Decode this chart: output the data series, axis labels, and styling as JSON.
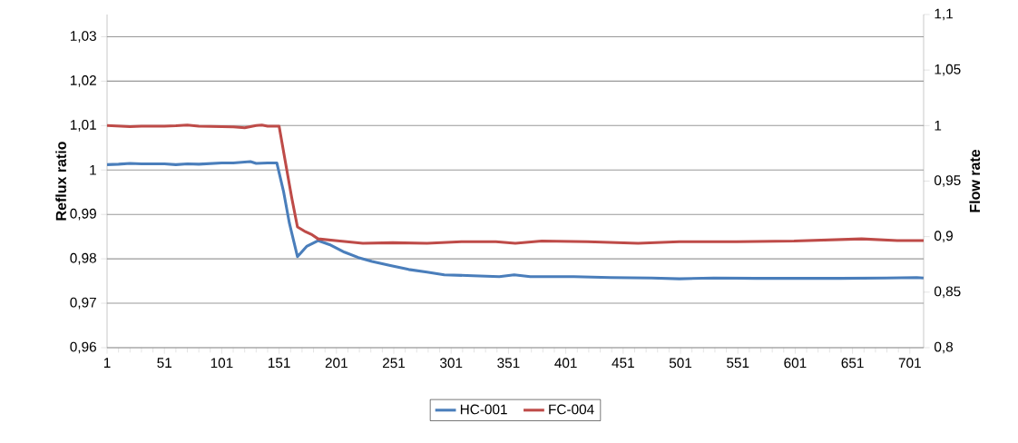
{
  "chart_data": {
    "type": "line",
    "ylabel": "Reflux ratio",
    "y2label": "Flow rate",
    "xlim": [
      1,
      713
    ],
    "xticks": [
      1,
      51,
      101,
      151,
      201,
      251,
      301,
      351,
      401,
      451,
      501,
      551,
      601,
      651,
      701
    ],
    "ylim": [
      0.96,
      1.035
    ],
    "yticks": [
      {
        "value": 0.96,
        "label": "0,96"
      },
      {
        "value": 0.97,
        "label": "0,97"
      },
      {
        "value": 0.98,
        "label": "0,98"
      },
      {
        "value": 0.99,
        "label": "0,99"
      },
      {
        "value": 1,
        "label": "1"
      },
      {
        "value": 1.01,
        "label": "1,01"
      },
      {
        "value": 1.02,
        "label": "1,02"
      },
      {
        "value": 1.03,
        "label": "1,03"
      }
    ],
    "y2lim": [
      0.8,
      1.1
    ],
    "y2ticks": [
      {
        "value": 0.8,
        "label": "0,8"
      },
      {
        "value": 0.85,
        "label": "0,85"
      },
      {
        "value": 0.9,
        "label": "0,9"
      },
      {
        "value": 0.95,
        "label": "0,95"
      },
      {
        "value": 1,
        "label": "1"
      },
      {
        "value": 1.05,
        "label": "1,05"
      },
      {
        "value": 1.1,
        "label": "1,1"
      }
    ],
    "grid": "y",
    "legend": "bottom",
    "series": [
      {
        "name": "HC-001",
        "color": "#4a7ebb",
        "x": [
          1,
          11,
          21,
          31,
          51,
          61,
          71,
          81,
          101,
          111,
          121,
          126,
          131,
          141,
          149,
          155,
          160,
          167,
          175,
          185,
          195,
          208,
          220,
          232,
          248,
          264,
          280,
          295,
          320,
          343,
          356,
          370,
          408,
          440,
          476,
          500,
          530,
          567,
          600,
          640,
          680,
          707,
          713
        ],
        "values": [
          1.0012,
          1.0013,
          1.0015,
          1.0014,
          1.0014,
          1.0012,
          1.0014,
          1.0013,
          1.0016,
          1.0016,
          1.0018,
          1.0019,
          1.0015,
          1.0016,
          1.0016,
          0.995,
          0.988,
          0.9805,
          0.9828,
          0.9841,
          0.9832,
          0.9815,
          0.9803,
          0.9794,
          0.9785,
          0.9776,
          0.977,
          0.9764,
          0.9762,
          0.976,
          0.9764,
          0.976,
          0.976,
          0.9758,
          0.9757,
          0.9755,
          0.9757,
          0.9756,
          0.9756,
          0.9756,
          0.9757,
          0.9758,
          0.9757
        ]
      },
      {
        "name": "FC-004",
        "color": "#be4b48",
        "axis": "y2",
        "x": [
          1,
          11,
          21,
          31,
          51,
          61,
          71,
          81,
          101,
          111,
          121,
          131,
          136,
          141,
          151,
          156,
          162,
          167,
          173,
          179,
          185,
          200,
          224,
          250,
          280,
          310,
          340,
          357,
          380,
          420,
          464,
          500,
          550,
          600,
          659,
          690,
          713
        ],
        "values": [
          1.0,
          0.9995,
          0.999,
          0.9995,
          0.9995,
          0.9998,
          1.0005,
          0.9995,
          0.999,
          0.9988,
          0.998,
          1.0,
          1.0005,
          0.9995,
          0.9995,
          0.97,
          0.935,
          0.9087,
          0.905,
          0.9021,
          0.898,
          0.8964,
          0.894,
          0.8945,
          0.894,
          0.8955,
          0.8955,
          0.894,
          0.896,
          0.8955,
          0.894,
          0.8955,
          0.8955,
          0.896,
          0.898,
          0.8965,
          0.8964
        ]
      }
    ]
  }
}
